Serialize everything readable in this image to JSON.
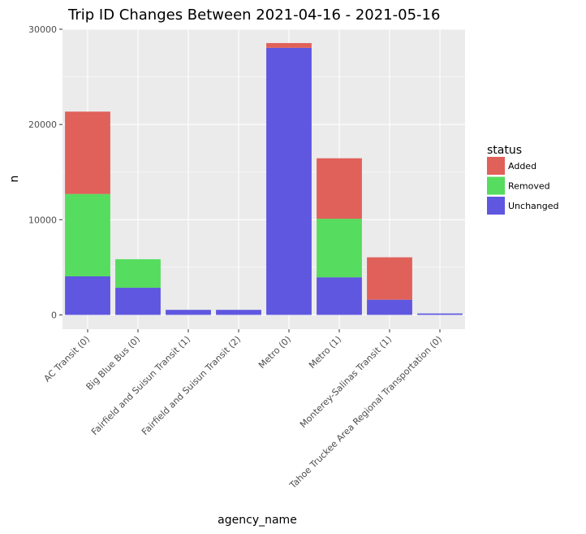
{
  "chart_data": {
    "type": "bar",
    "stacked": true,
    "title": "Trip ID Changes Between 2021-04-16 - 2021-05-16",
    "xlabel": "agency_name",
    "ylabel": "n",
    "ylim": [
      -1500,
      30000
    ],
    "yticks": [
      0,
      10000,
      20000,
      30000
    ],
    "ytick_labels": [
      "0",
      "10000",
      "20000",
      "30000"
    ],
    "grid": true,
    "legend_position": "right",
    "legend_title": "status",
    "categories": [
      "AC Transit (0)",
      "Big Blue Bus (0)",
      "Fairfield and Suisun Transit (1)",
      "Fairfield and Suisun Transit (2)",
      "Metro (0)",
      "Metro (1)",
      "Monterey-Salinas Transit (1)",
      "Tahoe Truckee Area Regional Transportation (0)"
    ],
    "series": [
      {
        "name": "Unchanged",
        "color": "#5f57df",
        "values": [
          4050,
          2850,
          530,
          530,
          28050,
          3950,
          1600,
          150
        ]
      },
      {
        "name": "Removed",
        "color": "#56dc5e",
        "values": [
          8650,
          3000,
          0,
          0,
          0,
          6150,
          0,
          0
        ]
      },
      {
        "name": "Added",
        "color": "#e0605a",
        "values": [
          8650,
          0,
          0,
          0,
          500,
          6350,
          4450,
          0
        ]
      }
    ],
    "legend_order": [
      "Added",
      "Removed",
      "Unchanged"
    ]
  }
}
